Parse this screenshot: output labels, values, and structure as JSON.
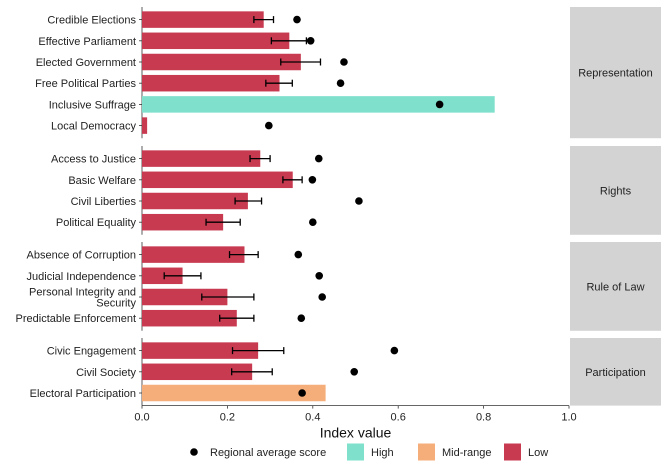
{
  "chart_data": {
    "type": "bar",
    "orientation": "horizontal",
    "faceted": true,
    "xlabel": "Index value",
    "xlim": [
      0,
      1
    ],
    "xticks": [
      "0.0",
      "0.2",
      "0.4",
      "0.6",
      "0.8",
      "1.0"
    ],
    "grid": false,
    "legend_position": "bottom",
    "legend": [
      {
        "key": "regional",
        "label": "Regional average score",
        "kind": "point",
        "color": "#000000"
      },
      {
        "key": "High",
        "label": "High",
        "kind": "fill",
        "color": "#7fe0cc"
      },
      {
        "key": "Mid-range",
        "label": "Mid-range",
        "kind": "fill",
        "color": "#f5ae7a"
      },
      {
        "key": "Low",
        "label": "Low",
        "kind": "fill",
        "color": "#c83a50"
      }
    ],
    "colors": {
      "High": "#7fe0cc",
      "Mid-range": "#f5ae7a",
      "Low": "#c83a50",
      "strip": "#d3d3d3"
    },
    "facets": [
      {
        "label": "Representation",
        "rows": [
          {
            "label": "Credible Elections",
            "value": 0.285,
            "err": [
              0.262,
              0.308
            ],
            "regional": 0.363,
            "level": "Low"
          },
          {
            "label": "Effective Parliament",
            "value": 0.345,
            "err": [
              0.303,
              0.385
            ],
            "regional": 0.395,
            "level": "Low"
          },
          {
            "label": "Elected Government",
            "value": 0.372,
            "err": [
              0.325,
              0.418
            ],
            "regional": 0.473,
            "level": "Low"
          },
          {
            "label": "Free Political Parties",
            "value": 0.322,
            "err": [
              0.29,
              0.352
            ],
            "regional": 0.465,
            "level": "Low"
          },
          {
            "label": "Inclusive Suffrage",
            "value": 0.826,
            "err": null,
            "regional": 0.697,
            "level": "High"
          },
          {
            "label": "Local Democracy",
            "value": 0.012,
            "err": null,
            "regional": 0.297,
            "level": "Low"
          }
        ]
      },
      {
        "label": "Rights",
        "rows": [
          {
            "label": "Access to Justice",
            "value": 0.277,
            "err": [
              0.253,
              0.3
            ],
            "regional": 0.414,
            "level": "Low"
          },
          {
            "label": "Basic Welfare",
            "value": 0.353,
            "err": [
              0.33,
              0.375
            ],
            "regional": 0.399,
            "level": "Low"
          },
          {
            "label": "Civil Liberties",
            "value": 0.248,
            "err": [
              0.218,
              0.28
            ],
            "regional": 0.508,
            "level": "Low"
          },
          {
            "label": "Political Equality",
            "value": 0.19,
            "err": [
              0.15,
              0.23
            ],
            "regional": 0.4,
            "level": "Low"
          }
        ]
      },
      {
        "label": "Rule of Law",
        "rows": [
          {
            "label": "Absence of Corruption",
            "value": 0.24,
            "err": [
              0.205,
              0.272
            ],
            "regional": 0.366,
            "level": "Low"
          },
          {
            "label": "Judicial Independence",
            "value": 0.095,
            "err": [
              0.052,
              0.138
            ],
            "regional": 0.415,
            "level": "Low"
          },
          {
            "label": "Personal Integrity and\nSecurity",
            "value": 0.2,
            "err": [
              0.14,
              0.262
            ],
            "regional": 0.422,
            "level": "Low"
          },
          {
            "label": "Predictable Enforcement",
            "value": 0.222,
            "err": [
              0.182,
              0.262
            ],
            "regional": 0.373,
            "level": "Low"
          }
        ]
      },
      {
        "label": "Participation",
        "rows": [
          {
            "label": "Civic Engagement",
            "value": 0.272,
            "err": [
              0.212,
              0.332
            ],
            "regional": 0.591,
            "level": "Low"
          },
          {
            "label": "Civil Society",
            "value": 0.258,
            "err": [
              0.21,
              0.305
            ],
            "regional": 0.497,
            "level": "Low"
          },
          {
            "label": "Electoral Participation",
            "value": 0.43,
            "err": null,
            "regional": 0.375,
            "level": "Mid-range"
          }
        ]
      }
    ]
  }
}
